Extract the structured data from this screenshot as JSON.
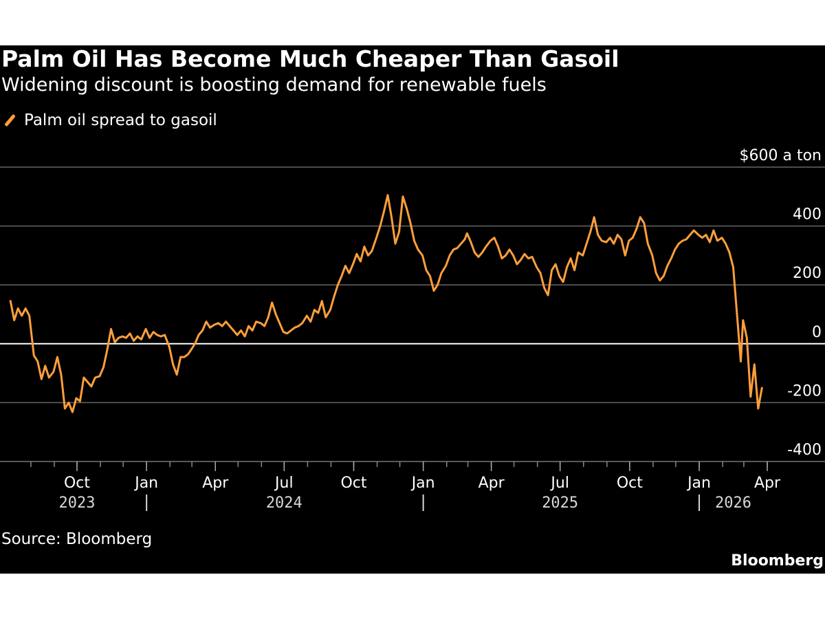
{
  "colors": {
    "background": "#000000",
    "line": "#ff9f3c",
    "grid": "#666666",
    "zero_line": "#ffffff",
    "text": "#ffffff"
  },
  "chart_data": {
    "type": "line",
    "title": "Palm Oil Has Become Much Cheaper Than Gasoil",
    "subtitle": "Widening discount is boosting demand for renewable fuels",
    "ylabel": "$600 a ton",
    "xlabel": "",
    "ylim": [
      -400,
      600
    ],
    "y_ticks": [
      600,
      400,
      200,
      0,
      -200,
      -400
    ],
    "y_tick_labels": [
      "$600 a ton",
      "400",
      "200",
      "0",
      "-200",
      "-400"
    ],
    "x_ticks": [
      {
        "date": "2023-10-01",
        "label": "Oct"
      },
      {
        "date": "2024-01-01",
        "label": "Jan"
      },
      {
        "date": "2024-04-01",
        "label": "Apr"
      },
      {
        "date": "2024-07-01",
        "label": "Jul"
      },
      {
        "date": "2024-10-01",
        "label": "Oct"
      },
      {
        "date": "2025-01-01",
        "label": "Jan"
      },
      {
        "date": "2025-04-01",
        "label": "Apr"
      },
      {
        "date": "2025-07-01",
        "label": "Jul"
      },
      {
        "date": "2025-10-01",
        "label": "Oct"
      },
      {
        "date": "2026-01-01",
        "label": "Jan"
      },
      {
        "date": "2026-04-01",
        "label": "Apr"
      }
    ],
    "year_labels": [
      {
        "label": "2023",
        "date": "2023-10-01",
        "divider_after": true
      },
      {
        "label": "2024",
        "date": "2024-07-01",
        "divider_after": true
      },
      {
        "label": "2025",
        "date": "2025-07-01",
        "divider_after": true
      },
      {
        "label": "2026",
        "date": "2026-02-15",
        "divider_after": false
      }
    ],
    "x_range": [
      "2023-07-01",
      "2026-04-10"
    ],
    "series": [
      {
        "name": "Palm oil spread to gasoil",
        "points": [
          [
            "2023-07-05",
            145
          ],
          [
            "2023-07-10",
            80
          ],
          [
            "2023-07-15",
            120
          ],
          [
            "2023-07-20",
            95
          ],
          [
            "2023-07-25",
            120
          ],
          [
            "2023-07-30",
            95
          ],
          [
            "2023-08-05",
            -40
          ],
          [
            "2023-08-10",
            -60
          ],
          [
            "2023-08-15",
            -120
          ],
          [
            "2023-08-20",
            -75
          ],
          [
            "2023-08-25",
            -115
          ],
          [
            "2023-08-31",
            -95
          ],
          [
            "2023-09-05",
            -45
          ],
          [
            "2023-09-10",
            -105
          ],
          [
            "2023-09-15",
            -220
          ],
          [
            "2023-09-20",
            -200
          ],
          [
            "2023-09-25",
            -232
          ],
          [
            "2023-09-30",
            -185
          ],
          [
            "2023-10-05",
            -195
          ],
          [
            "2023-10-10",
            -115
          ],
          [
            "2023-10-15",
            -130
          ],
          [
            "2023-10-20",
            -145
          ],
          [
            "2023-10-25",
            -115
          ],
          [
            "2023-10-31",
            -110
          ],
          [
            "2023-11-05",
            -80
          ],
          [
            "2023-11-10",
            -20
          ],
          [
            "2023-11-15",
            50
          ],
          [
            "2023-11-20",
            5
          ],
          [
            "2023-11-25",
            20
          ],
          [
            "2023-11-30",
            25
          ],
          [
            "2023-12-05",
            20
          ],
          [
            "2023-12-10",
            35
          ],
          [
            "2023-12-15",
            10
          ],
          [
            "2023-12-20",
            25
          ],
          [
            "2023-12-25",
            15
          ],
          [
            "2023-12-31",
            50
          ],
          [
            "2024-01-05",
            20
          ],
          [
            "2024-01-10",
            40
          ],
          [
            "2024-01-15",
            30
          ],
          [
            "2024-01-20",
            25
          ],
          [
            "2024-01-25",
            30
          ],
          [
            "2024-01-31",
            -10
          ],
          [
            "2024-02-05",
            -70
          ],
          [
            "2024-02-10",
            -105
          ],
          [
            "2024-02-15",
            -45
          ],
          [
            "2024-02-20",
            -45
          ],
          [
            "2024-02-25",
            -35
          ],
          [
            "2024-02-29",
            -20
          ],
          [
            "2024-03-05",
            0
          ],
          [
            "2024-03-10",
            30
          ],
          [
            "2024-03-15",
            45
          ],
          [
            "2024-03-20",
            75
          ],
          [
            "2024-03-25",
            55
          ],
          [
            "2024-03-31",
            65
          ],
          [
            "2024-04-05",
            70
          ],
          [
            "2024-04-10",
            60
          ],
          [
            "2024-04-15",
            75
          ],
          [
            "2024-04-20",
            60
          ],
          [
            "2024-04-25",
            45
          ],
          [
            "2024-04-30",
            30
          ],
          [
            "2024-05-05",
            45
          ],
          [
            "2024-05-10",
            25
          ],
          [
            "2024-05-15",
            60
          ],
          [
            "2024-05-20",
            45
          ],
          [
            "2024-05-25",
            75
          ],
          [
            "2024-05-31",
            70
          ],
          [
            "2024-06-05",
            60
          ],
          [
            "2024-06-10",
            90
          ],
          [
            "2024-06-15",
            140
          ],
          [
            "2024-06-20",
            100
          ],
          [
            "2024-06-25",
            70
          ],
          [
            "2024-06-30",
            40
          ],
          [
            "2024-07-05",
            35
          ],
          [
            "2024-07-10",
            45
          ],
          [
            "2024-07-15",
            55
          ],
          [
            "2024-07-20",
            60
          ],
          [
            "2024-07-25",
            70
          ],
          [
            "2024-07-31",
            95
          ],
          [
            "2024-08-05",
            75
          ],
          [
            "2024-08-10",
            115
          ],
          [
            "2024-08-15",
            105
          ],
          [
            "2024-08-20",
            145
          ],
          [
            "2024-08-25",
            90
          ],
          [
            "2024-08-31",
            115
          ],
          [
            "2024-09-05",
            160
          ],
          [
            "2024-09-10",
            200
          ],
          [
            "2024-09-15",
            230
          ],
          [
            "2024-09-20",
            265
          ],
          [
            "2024-09-25",
            240
          ],
          [
            "2024-09-30",
            270
          ],
          [
            "2024-10-05",
            305
          ],
          [
            "2024-10-10",
            280
          ],
          [
            "2024-10-15",
            330
          ],
          [
            "2024-10-20",
            300
          ],
          [
            "2024-10-25",
            315
          ],
          [
            "2024-10-31",
            360
          ],
          [
            "2024-11-05",
            400
          ],
          [
            "2024-11-10",
            450
          ],
          [
            "2024-11-15",
            505
          ],
          [
            "2024-11-20",
            430
          ],
          [
            "2024-11-25",
            340
          ],
          [
            "2024-11-30",
            380
          ],
          [
            "2024-12-05",
            500
          ],
          [
            "2024-12-10",
            460
          ],
          [
            "2024-12-15",
            410
          ],
          [
            "2024-12-20",
            350
          ],
          [
            "2024-12-25",
            320
          ],
          [
            "2024-12-31",
            300
          ],
          [
            "2025-01-05",
            250
          ],
          [
            "2025-01-10",
            230
          ],
          [
            "2025-01-15",
            180
          ],
          [
            "2025-01-20",
            200
          ],
          [
            "2025-01-25",
            240
          ],
          [
            "2025-01-31",
            265
          ],
          [
            "2025-02-05",
            300
          ],
          [
            "2025-02-10",
            320
          ],
          [
            "2025-02-15",
            325
          ],
          [
            "2025-02-20",
            340
          ],
          [
            "2025-02-25",
            355
          ],
          [
            "2025-02-28",
            375
          ],
          [
            "2025-03-05",
            345
          ],
          [
            "2025-03-10",
            310
          ],
          [
            "2025-03-15",
            295
          ],
          [
            "2025-03-20",
            310
          ],
          [
            "2025-03-25",
            330
          ],
          [
            "2025-03-31",
            350
          ],
          [
            "2025-04-05",
            360
          ],
          [
            "2025-04-10",
            330
          ],
          [
            "2025-04-15",
            290
          ],
          [
            "2025-04-20",
            300
          ],
          [
            "2025-04-25",
            320
          ],
          [
            "2025-04-30",
            300
          ],
          [
            "2025-05-05",
            270
          ],
          [
            "2025-05-10",
            285
          ],
          [
            "2025-05-15",
            305
          ],
          [
            "2025-05-20",
            290
          ],
          [
            "2025-05-25",
            295
          ],
          [
            "2025-05-31",
            260
          ],
          [
            "2025-06-05",
            240
          ],
          [
            "2025-06-10",
            190
          ],
          [
            "2025-06-15",
            165
          ],
          [
            "2025-06-20",
            250
          ],
          [
            "2025-06-25",
            270
          ],
          [
            "2025-06-30",
            230
          ],
          [
            "2025-07-05",
            210
          ],
          [
            "2025-07-10",
            260
          ],
          [
            "2025-07-15",
            290
          ],
          [
            "2025-07-20",
            250
          ],
          [
            "2025-07-25",
            310
          ],
          [
            "2025-07-31",
            300
          ],
          [
            "2025-08-05",
            340
          ],
          [
            "2025-08-10",
            380
          ],
          [
            "2025-08-15",
            430
          ],
          [
            "2025-08-20",
            370
          ],
          [
            "2025-08-25",
            350
          ],
          [
            "2025-08-31",
            345
          ],
          [
            "2025-09-05",
            360
          ],
          [
            "2025-09-10",
            340
          ],
          [
            "2025-09-15",
            370
          ],
          [
            "2025-09-20",
            355
          ],
          [
            "2025-09-25",
            300
          ],
          [
            "2025-09-30",
            350
          ],
          [
            "2025-10-05",
            360
          ],
          [
            "2025-10-10",
            390
          ],
          [
            "2025-10-15",
            430
          ],
          [
            "2025-10-20",
            410
          ],
          [
            "2025-10-25",
            340
          ],
          [
            "2025-10-31",
            300
          ],
          [
            "2025-11-05",
            240
          ],
          [
            "2025-11-10",
            215
          ],
          [
            "2025-11-15",
            230
          ],
          [
            "2025-11-20",
            265
          ],
          [
            "2025-11-25",
            290
          ],
          [
            "2025-11-30",
            320
          ],
          [
            "2025-12-05",
            340
          ],
          [
            "2025-12-10",
            350
          ],
          [
            "2025-12-15",
            355
          ],
          [
            "2025-12-20",
            370
          ],
          [
            "2025-12-25",
            385
          ],
          [
            "2025-12-31",
            370
          ],
          [
            "2026-01-05",
            360
          ],
          [
            "2026-01-10",
            370
          ],
          [
            "2026-01-15",
            345
          ],
          [
            "2026-01-20",
            385
          ],
          [
            "2026-01-25",
            350
          ],
          [
            "2026-01-31",
            360
          ],
          [
            "2026-02-05",
            340
          ],
          [
            "2026-02-10",
            310
          ],
          [
            "2026-02-15",
            260
          ],
          [
            "2026-02-20",
            100
          ],
          [
            "2026-02-25",
            -60
          ],
          [
            "2026-02-28",
            80
          ],
          [
            "2026-03-05",
            20
          ],
          [
            "2026-03-10",
            -180
          ],
          [
            "2026-03-15",
            -70
          ],
          [
            "2026-03-20",
            -220
          ],
          [
            "2026-03-25",
            -150
          ]
        ]
      }
    ],
    "source": "Source: Bloomberg",
    "brand": "Bloomberg"
  }
}
